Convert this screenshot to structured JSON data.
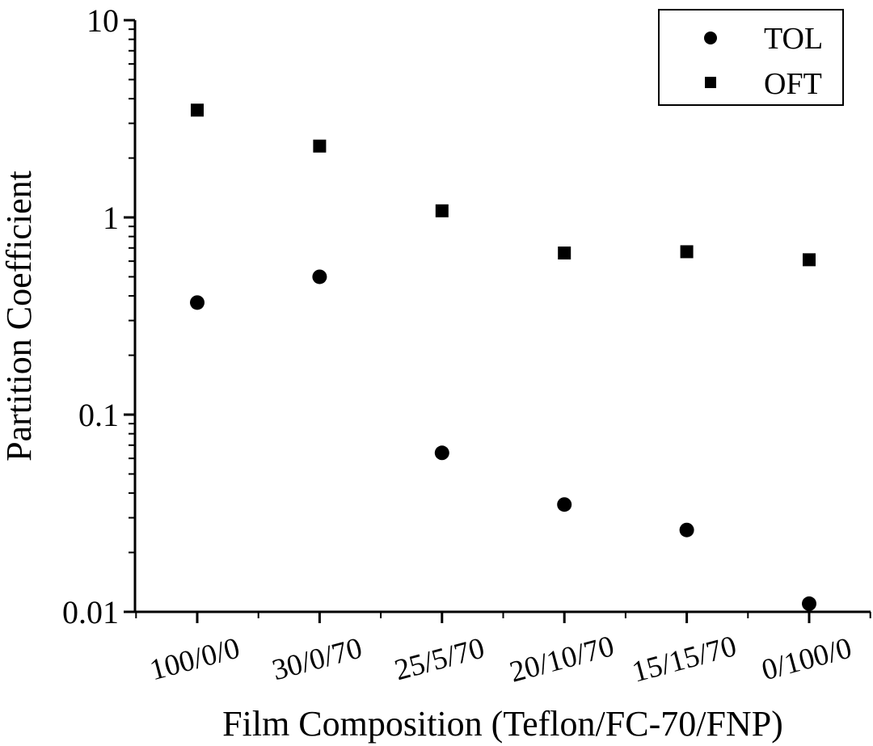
{
  "chart_data": {
    "type": "scatter",
    "title": "",
    "xlabel": "Film Composition (Teflon/FC-70/FNP)",
    "ylabel": "Partition Coefficient",
    "yscale": "log",
    "ylim": [
      0.01,
      10
    ],
    "yticks": [
      "0.01",
      "0.1",
      "1",
      "10"
    ],
    "categories": [
      "100/0/0",
      "30/0/70",
      "25/5/70",
      "20/10/70",
      "15/15/70",
      "0/100/0"
    ],
    "series": [
      {
        "name": "TOL",
        "marker": "circle",
        "color": "#000000",
        "values": [
          0.37,
          0.5,
          0.064,
          0.035,
          0.026,
          0.011
        ]
      },
      {
        "name": "OFT",
        "marker": "square",
        "color": "#000000",
        "values": [
          3.5,
          2.3,
          1.08,
          0.66,
          0.67,
          0.61
        ]
      }
    ],
    "grid": false,
    "legend": "top-right"
  }
}
